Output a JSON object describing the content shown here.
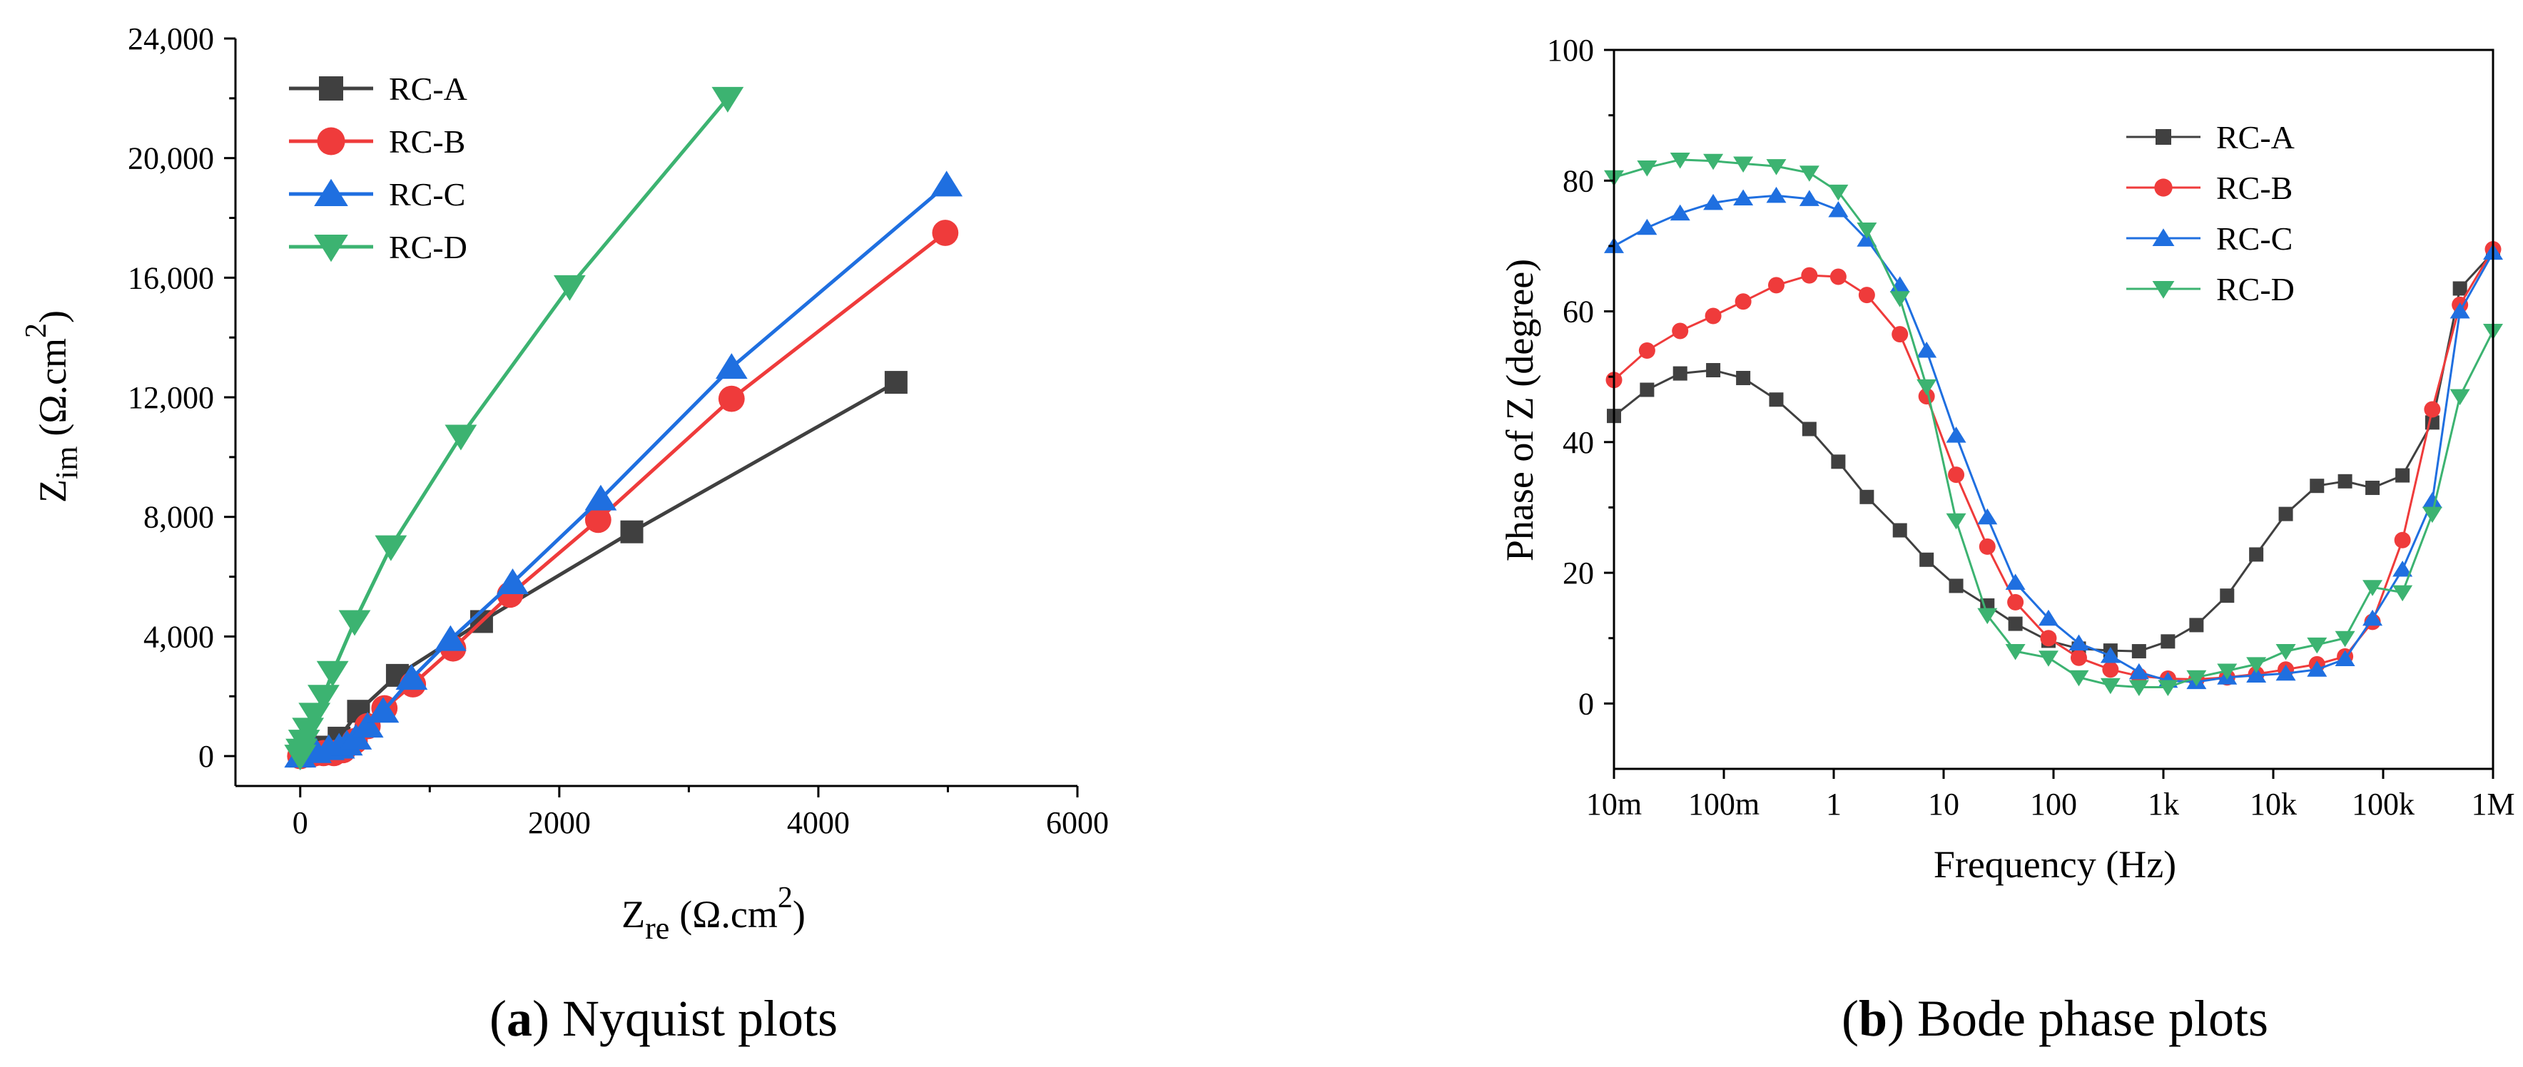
{
  "chart_data": [
    {
      "type": "line",
      "panel": "a",
      "caption_letter": "a",
      "caption_text": "Nyquist plots",
      "xlabel_main": "Z",
      "xlabel_sub": "re",
      "xlabel_unit": "(Ω.cm",
      "xlabel_sup": "2",
      "xlabel_close": ")",
      "ylabel_main": "Z",
      "ylabel_sub": "im",
      "ylabel_unit": "(Ω.cm",
      "ylabel_sup": "2",
      "ylabel_close": ")",
      "xlim": [
        -500,
        6000
      ],
      "ylim": [
        -1000,
        24000
      ],
      "xticks": [
        0,
        2000,
        4000,
        6000
      ],
      "xtick_labels": [
        "0",
        "2000",
        "4000",
        "6000"
      ],
      "yticks": [
        0,
        4000,
        8000,
        12000,
        16000,
        20000,
        24000
      ],
      "ytick_labels": [
        "0",
        "4,000",
        "8,000",
        "12,000",
        "16,000",
        "20,000",
        "24,000"
      ],
      "legend_position": "top-left",
      "series": [
        {
          "name": "RC-A",
          "color": "#404040",
          "marker": "square",
          "points": [
            [
              0,
              0
            ],
            [
              60,
              60
            ],
            [
              120,
              150
            ],
            [
              200,
              300
            ],
            [
              300,
              600
            ],
            [
              450,
              1500
            ],
            [
              750,
              2700
            ],
            [
              1400,
              4500
            ],
            [
              2560,
              7500
            ],
            [
              4600,
              12500
            ]
          ]
        },
        {
          "name": "RC-B",
          "color": "#ef3b3b",
          "marker": "circle",
          "points": [
            [
              0,
              0
            ],
            [
              100,
              80
            ],
            [
              180,
              100
            ],
            [
              260,
              100
            ],
            [
              330,
              200
            ],
            [
              420,
              500
            ],
            [
              520,
              1000
            ],
            [
              650,
              1600
            ],
            [
              870,
              2400
            ],
            [
              1180,
              3600
            ],
            [
              1620,
              5400
            ],
            [
              2300,
              7900
            ],
            [
              3330,
              11950
            ],
            [
              4980,
              17500
            ]
          ]
        },
        {
          "name": "RC-C",
          "color": "#1f6fe0",
          "marker": "triangle-up",
          "points": [
            [
              0,
              0
            ],
            [
              120,
              150
            ],
            [
              220,
              250
            ],
            [
              300,
              300
            ],
            [
              360,
              400
            ],
            [
              430,
              600
            ],
            [
              520,
              1000
            ],
            [
              640,
              1500
            ],
            [
              860,
              2600
            ],
            [
              1160,
              3900
            ],
            [
              1640,
              5800
            ],
            [
              2320,
              8600
            ],
            [
              3330,
              13000
            ],
            [
              4990,
              19100
            ]
          ]
        },
        {
          "name": "RC-D",
          "color": "#3cb371",
          "marker": "triangle-down",
          "points": [
            [
              0,
              0
            ],
            [
              10,
              200
            ],
            [
              30,
              500
            ],
            [
              60,
              900
            ],
            [
              110,
              1400
            ],
            [
              180,
              2000
            ],
            [
              250,
              2800
            ],
            [
              420,
              4500
            ],
            [
              700,
              7000
            ],
            [
              1240,
              10700
            ],
            [
              2080,
              15700
            ],
            [
              3300,
              22000
            ]
          ]
        }
      ]
    },
    {
      "type": "line",
      "panel": "b",
      "caption_letter": "b",
      "caption_text": "Bode phase plots",
      "xlabel": "Frequency (Hz)",
      "ylabel": "Phase of Z (degree)",
      "xscale": "log",
      "xlim": [
        0.01,
        1000000
      ],
      "ylim": [
        -10,
        100
      ],
      "xticks": [
        0.01,
        0.1,
        1,
        10,
        100,
        1000,
        10000,
        100000,
        1000000
      ],
      "xtick_labels": [
        "10m",
        "100m",
        "1",
        "10",
        "100",
        "1k",
        "10k",
        "100k",
        "1M"
      ],
      "yticks": [
        0,
        20,
        40,
        60,
        80,
        100
      ],
      "ytick_labels": [
        "0",
        "20",
        "40",
        "60",
        "80",
        "100"
      ],
      "legend_position": "top-right",
      "series": [
        {
          "name": "RC-A",
          "color": "#404040",
          "marker": "square",
          "points": [
            [
              0.01,
              44
            ],
            [
              0.02,
              48
            ],
            [
              0.04,
              50.5
            ],
            [
              0.08,
              51
            ],
            [
              0.15,
              49.8
            ],
            [
              0.3,
              46.5
            ],
            [
              0.6,
              42
            ],
            [
              1.1,
              37
            ],
            [
              2,
              31.6
            ],
            [
              4,
              26.5
            ],
            [
              7,
              22
            ],
            [
              13,
              18
            ],
            [
              25,
              15
            ],
            [
              45,
              12.2
            ],
            [
              90,
              9.6
            ],
            [
              170,
              8.4
            ],
            [
              330,
              8.1
            ],
            [
              600,
              8
            ],
            [
              1100,
              9.5
            ],
            [
              2000,
              12
            ],
            [
              3800,
              16.5
            ],
            [
              7000,
              22.8
            ],
            [
              13000,
              29
            ],
            [
              25000,
              33.3
            ],
            [
              45000,
              34
            ],
            [
              80000,
              33
            ],
            [
              150000,
              34.9
            ],
            [
              280000,
              43
            ],
            [
              500000,
              63.5
            ],
            [
              1000000,
              69
            ]
          ]
        },
        {
          "name": "RC-B",
          "color": "#ef3b3b",
          "marker": "circle",
          "points": [
            [
              0.01,
              49.5
            ],
            [
              0.02,
              54
            ],
            [
              0.04,
              57
            ],
            [
              0.08,
              59.3
            ],
            [
              0.15,
              61.5
            ],
            [
              0.3,
              64
            ],
            [
              0.6,
              65.5
            ],
            [
              1.1,
              65.3
            ],
            [
              2,
              62.5
            ],
            [
              4,
              56.5
            ],
            [
              7,
              47
            ],
            [
              13,
              35
            ],
            [
              25,
              24
            ],
            [
              45,
              15.5
            ],
            [
              90,
              10
            ],
            [
              170,
              7
            ],
            [
              330,
              5.2
            ],
            [
              600,
              4.2
            ],
            [
              1100,
              3.8
            ],
            [
              2000,
              3.7
            ],
            [
              3800,
              4
            ],
            [
              7000,
              4.5
            ],
            [
              13000,
              5.2
            ],
            [
              25000,
              6
            ],
            [
              45000,
              7.2
            ],
            [
              80000,
              12.5
            ],
            [
              150000,
              25
            ],
            [
              280000,
              45
            ],
            [
              500000,
              61
            ],
            [
              1000000,
              69.5
            ]
          ]
        },
        {
          "name": "RC-C",
          "color": "#1f6fe0",
          "marker": "triangle-up",
          "points": [
            [
              0.01,
              70
            ],
            [
              0.02,
              72.8
            ],
            [
              0.04,
              75
            ],
            [
              0.08,
              76.6
            ],
            [
              0.15,
              77.3
            ],
            [
              0.3,
              77.7
            ],
            [
              0.6,
              77.2
            ],
            [
              1.1,
              75.5
            ],
            [
              2,
              71
            ],
            [
              4,
              64
            ],
            [
              7,
              54
            ],
            [
              13,
              41
            ],
            [
              25,
              28.5
            ],
            [
              45,
              18.5
            ],
            [
              90,
              13
            ],
            [
              170,
              9.2
            ],
            [
              330,
              7.3
            ],
            [
              600,
              4.8
            ],
            [
              1100,
              3.5
            ],
            [
              2000,
              3.3
            ],
            [
              3800,
              4
            ],
            [
              7000,
              4.3
            ],
            [
              13000,
              4.6
            ],
            [
              25000,
              5.2
            ],
            [
              45000,
              6.8
            ],
            [
              80000,
              13
            ],
            [
              150000,
              20.5
            ],
            [
              280000,
              31
            ],
            [
              500000,
              60
            ],
            [
              1000000,
              69
            ]
          ]
        },
        {
          "name": "RC-D",
          "color": "#3cb371",
          "marker": "triangle-down",
          "points": [
            [
              0.01,
              80.5
            ],
            [
              0.02,
              82
            ],
            [
              0.04,
              83.2
            ],
            [
              0.08,
              83
            ],
            [
              0.15,
              82.6
            ],
            [
              0.3,
              82.2
            ],
            [
              0.6,
              81.2
            ],
            [
              1.1,
              78.3
            ],
            [
              2,
              72.5
            ],
            [
              4,
              62
            ],
            [
              7,
              48.5
            ],
            [
              13,
              28
            ],
            [
              25,
              13.5
            ],
            [
              45,
              8
            ],
            [
              90,
              7
            ],
            [
              170,
              4
            ],
            [
              330,
              2.8
            ],
            [
              600,
              2.5
            ],
            [
              1100,
              2.5
            ],
            [
              2000,
              4
            ],
            [
              3800,
              5
            ],
            [
              7000,
              6
            ],
            [
              13000,
              8
            ],
            [
              25000,
              9
            ],
            [
              45000,
              10
            ],
            [
              80000,
              17.8
            ],
            [
              150000,
              17
            ],
            [
              280000,
              29
            ],
            [
              500000,
              47
            ],
            [
              1000000,
              57
            ]
          ]
        }
      ]
    }
  ]
}
